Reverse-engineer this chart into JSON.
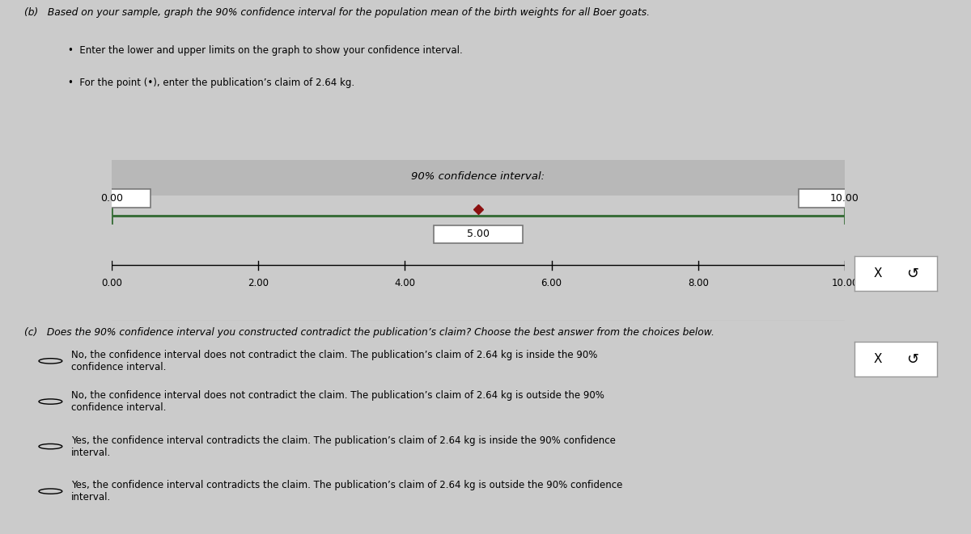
{
  "title_b": "(b)   Based on your sample, graph the 90% confidence interval for the population mean of the birth weights for all Boer goats.",
  "bullet1": "Enter the lower and upper limits on the graph to show your confidence interval.",
  "bullet2": "For the point (•), enter the publication’s claim of 2.64 kg.",
  "ci_title": "90% confidence interval:",
  "ci_lower": 0.0,
  "ci_upper": 10.0,
  "ci_point": 5.0,
  "ci_label_lower": "0.00",
  "ci_label_upper": "10.00",
  "ci_label_point": "5.00",
  "xmin": 0.0,
  "xmax": 10.0,
  "xticks": [
    0.0,
    2.0,
    4.0,
    6.0,
    8.0,
    10.0
  ],
  "xtick_labels": [
    "0.00",
    "2.00",
    "4.00",
    "6.00",
    "8.00",
    "10.00"
  ],
  "bg_color": "#cbcbcb",
  "chart_bg": "#d8d8d8",
  "title_c": "(c)   Does the 90% confidence interval you constructed contradict the publication’s claim? Choose the best answer from the choices below.",
  "option1": "No, the confidence interval does not contradict the claim. The publication’s claim of 2.64 kg is inside the 90%\nconfidence interval.",
  "option2": "No, the confidence interval does not contradict the claim. The publication’s claim of 2.64 kg is outside the 90%\nconfidence interval.",
  "option3": "Yes, the confidence interval contradicts the claim. The publication’s claim of 2.64 kg is inside the 90% confidence\ninterval.",
  "option4": "Yes, the confidence interval contradicts the claim. The publication’s claim of 2.64 kg is outside the 90% confidence\ninterval.",
  "line_color": "#3a6e3a",
  "point_color": "#8b1010",
  "box_bg": "#ffffff",
  "box_border": "#777777",
  "header_strip_color": "#b8b8b8"
}
